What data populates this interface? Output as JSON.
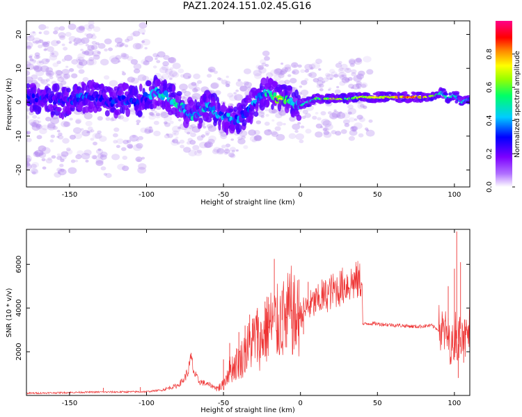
{
  "figure_title": "PAZ1.2024.151.02.45.G16",
  "chart_data": [
    {
      "type": "heatmap",
      "xlabel": "Height of straight line (km)",
      "ylabel": "Frequency (Hz)",
      "xlim": [
        -178,
        110
      ],
      "ylim": [
        -25,
        24
      ],
      "xticks": [
        -150,
        -100,
        -50,
        0,
        50,
        100
      ],
      "yticks": [
        -20,
        -10,
        0,
        10,
        20
      ],
      "grid": false,
      "colorbar": {
        "label": "Normalized spectral amplitude",
        "ticks": [
          0.0,
          0.2,
          0.4,
          0.6,
          0.8
        ],
        "tick_labels": [
          "0.0",
          "0.2",
          "0.4",
          "0.6",
          "0.8"
        ],
        "range": [
          0,
          1
        ],
        "colormap": [
          "#ffffff",
          "#7d00ff",
          "#0000ff",
          "#00ccff",
          "#00ff66",
          "#99ff00",
          "#ffff00",
          "#ff8800",
          "#ff0000",
          "#ff0088"
        ]
      },
      "ridge": {
        "x": [
          -175,
          -165,
          -155,
          -145,
          -135,
          -125,
          -115,
          -105,
          -95,
          -88,
          -82,
          -76,
          -70,
          -65,
          -60,
          -55,
          -50,
          -45,
          -40,
          -35,
          -30,
          -25,
          -20,
          -15,
          -10,
          -5,
          0,
          5,
          10,
          20,
          30,
          40,
          50,
          60,
          70,
          80,
          88,
          92,
          95,
          100,
          105,
          110
        ],
        "freq": [
          1,
          1,
          0,
          1,
          2,
          0,
          1,
          0,
          3,
          2,
          0,
          -2,
          -4,
          -3,
          -1,
          -3,
          -4,
          -5,
          -5,
          -3,
          0,
          2,
          3,
          1,
          1,
          0,
          -1,
          0,
          1,
          1,
          1,
          1.5,
          1.5,
          1.5,
          1.5,
          1.5,
          2,
          3,
          1,
          2,
          0,
          1
        ],
        "intensity": [
          0.3,
          0.25,
          0.25,
          0.3,
          0.3,
          0.25,
          0.3,
          0.3,
          0.4,
          0.5,
          0.5,
          0.5,
          0.45,
          0.45,
          0.45,
          0.4,
          0.4,
          0.4,
          0.35,
          0.3,
          0.35,
          0.4,
          0.55,
          0.75,
          0.7,
          0.5,
          0.5,
          0.55,
          0.6,
          0.7,
          0.65,
          0.7,
          0.75,
          0.8,
          0.9,
          0.85,
          0.6,
          0.5,
          0.5,
          0.45,
          0.45,
          0.4
        ]
      }
    },
    {
      "type": "line",
      "xlabel": "Height of straight line (km)",
      "ylabel": "SNR (10 * v/v)",
      "xlim": [
        -178,
        110
      ],
      "ylim": [
        0,
        7600
      ],
      "xticks": [
        -150,
        -100,
        -50,
        0,
        50,
        100
      ],
      "yticks": [
        2000,
        4000,
        6000
      ],
      "grid": false,
      "color": "#ee3333",
      "series": [
        {
          "x": [
            -178,
            -160,
            -140,
            -120,
            -100,
            -90,
            -85,
            -80,
            -76,
            -73,
            -71,
            -69,
            -66,
            -62,
            -58,
            -54,
            -50,
            -47,
            -44,
            -41,
            -38,
            -35,
            -32,
            -29,
            -26,
            -23,
            -20,
            -17,
            -15,
            -12,
            -9,
            -6,
            -3,
            0,
            5,
            10,
            15,
            20,
            25,
            30,
            35,
            38,
            40,
            40.5,
            45,
            55,
            65,
            75,
            85,
            90,
            95,
            98,
            100,
            101,
            102,
            103,
            105,
            107,
            110
          ],
          "y": [
            100,
            120,
            150,
            160,
            170,
            250,
            350,
            450,
            700,
            1100,
            1700,
            1000,
            650,
            550,
            450,
            320,
            480,
            1100,
            1300,
            1500,
            1700,
            2100,
            2400,
            2700,
            2450,
            2900,
            3200,
            3350,
            3300,
            3450,
            3600,
            3850,
            3450,
            3700,
            4050,
            4250,
            4500,
            4750,
            4900,
            5100,
            5200,
            5250,
            5200,
            3250,
            3300,
            3250,
            3200,
            3150,
            3200,
            3000,
            2800,
            2200,
            2600,
            3200,
            2000,
            2700,
            3400,
            2500,
            3000
          ]
        }
      ],
      "spikes": {
        "x": [
          -128,
          -104,
          -71,
          -50,
          -46,
          -40,
          -36,
          -33,
          -31,
          -28,
          -25,
          -23,
          -21,
          -19,
          -17,
          -15,
          -12,
          -9,
          -6,
          -3,
          -1,
          2,
          5,
          10,
          14,
          18,
          96,
          100,
          101.5,
          102.5,
          104,
          106
        ],
        "y": [
          350,
          380,
          1950,
          1650,
          2400,
          2900,
          3200,
          3700,
          3500,
          4000,
          2400,
          4300,
          4500,
          3000,
          6250,
          2000,
          4800,
          2200,
          5200,
          2300,
          5300,
          2800,
          5200,
          4900,
          5300,
          4600,
          5000,
          5800,
          7500,
          800,
          6100,
          1500
        ]
      }
    }
  ]
}
